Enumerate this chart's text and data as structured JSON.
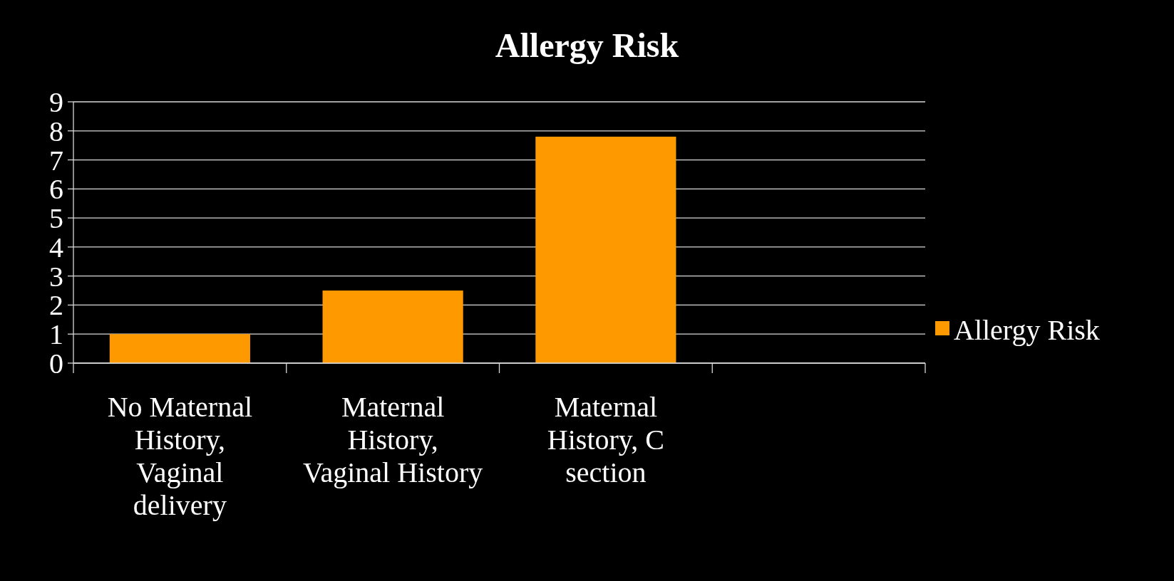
{
  "chart_data": {
    "type": "bar",
    "title": "Allergy Risk",
    "categories": [
      "No Maternal History, Vaginal delivery",
      "Maternal History, Vaginal History",
      "Maternal History, C section",
      null
    ],
    "series": [
      {
        "name": "Allergy Risk",
        "color": "#ff9900",
        "values": [
          1,
          2.5,
          7.8,
          null
        ]
      }
    ],
    "ylim": [
      0,
      9
    ],
    "yticks": [
      0,
      1,
      2,
      3,
      4,
      5,
      6,
      7,
      8,
      9
    ],
    "grid": "y",
    "legend": "right"
  }
}
